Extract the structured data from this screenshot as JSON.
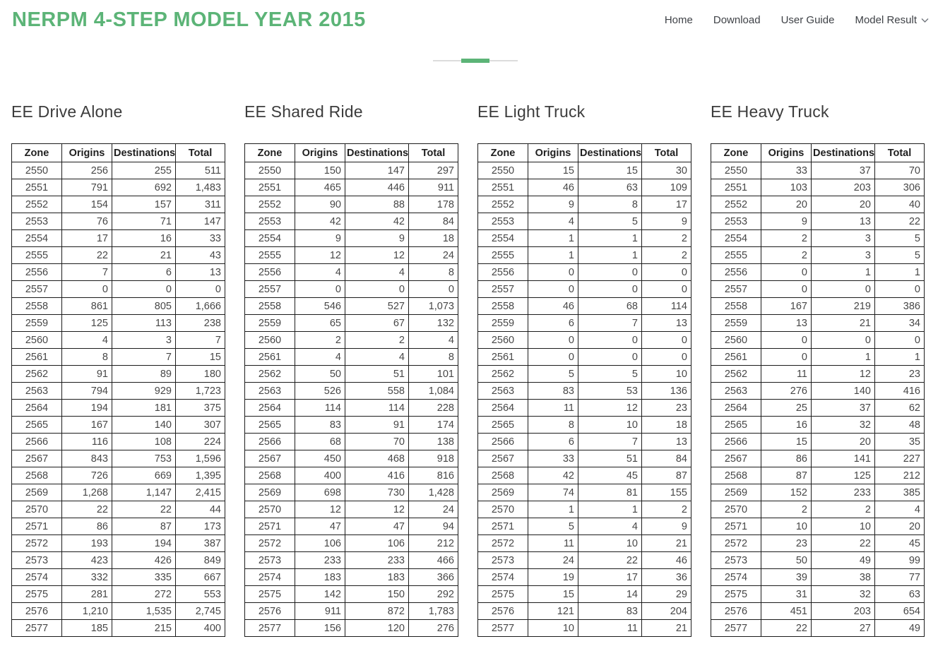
{
  "header": {
    "title": "NERPM 4-STEP MODEL YEAR 2015",
    "nav": [
      {
        "label": "Home",
        "has_dropdown": false
      },
      {
        "label": "Download",
        "has_dropdown": false
      },
      {
        "label": "User Guide",
        "has_dropdown": false
      },
      {
        "label": "Model Result",
        "has_dropdown": true
      }
    ]
  },
  "icons": {
    "dropdown": "chevron-down-icon"
  },
  "colors": {
    "accent_green": "#5cb477",
    "nav_text": "#3f4247",
    "heading_text": "#3c3c3c",
    "table_text": "#474747",
    "table_border": "#1c1c1c",
    "divider_gray": "#dcdcdc"
  },
  "columns": [
    "Zone",
    "Origins",
    "Destinations",
    "Total"
  ],
  "tables": [
    {
      "title": "EE Drive Alone",
      "rows": [
        [
          "2550",
          "256",
          "255",
          "511"
        ],
        [
          "2551",
          "791",
          "692",
          "1,483"
        ],
        [
          "2552",
          "154",
          "157",
          "311"
        ],
        [
          "2553",
          "76",
          "71",
          "147"
        ],
        [
          "2554",
          "17",
          "16",
          "33"
        ],
        [
          "2555",
          "22",
          "21",
          "43"
        ],
        [
          "2556",
          "7",
          "6",
          "13"
        ],
        [
          "2557",
          "0",
          "0",
          "0"
        ],
        [
          "2558",
          "861",
          "805",
          "1,666"
        ],
        [
          "2559",
          "125",
          "113",
          "238"
        ],
        [
          "2560",
          "4",
          "3",
          "7"
        ],
        [
          "2561",
          "8",
          "7",
          "15"
        ],
        [
          "2562",
          "91",
          "89",
          "180"
        ],
        [
          "2563",
          "794",
          "929",
          "1,723"
        ],
        [
          "2564",
          "194",
          "181",
          "375"
        ],
        [
          "2565",
          "167",
          "140",
          "307"
        ],
        [
          "2566",
          "116",
          "108",
          "224"
        ],
        [
          "2567",
          "843",
          "753",
          "1,596"
        ],
        [
          "2568",
          "726",
          "669",
          "1,395"
        ],
        [
          "2569",
          "1,268",
          "1,147",
          "2,415"
        ],
        [
          "2570",
          "22",
          "22",
          "44"
        ],
        [
          "2571",
          "86",
          "87",
          "173"
        ],
        [
          "2572",
          "193",
          "194",
          "387"
        ],
        [
          "2573",
          "423",
          "426",
          "849"
        ],
        [
          "2574",
          "332",
          "335",
          "667"
        ],
        [
          "2575",
          "281",
          "272",
          "553"
        ],
        [
          "2576",
          "1,210",
          "1,535",
          "2,745"
        ],
        [
          "2577",
          "185",
          "215",
          "400"
        ]
      ]
    },
    {
      "title": "EE Shared Ride",
      "rows": [
        [
          "2550",
          "150",
          "147",
          "297"
        ],
        [
          "2551",
          "465",
          "446",
          "911"
        ],
        [
          "2552",
          "90",
          "88",
          "178"
        ],
        [
          "2553",
          "42",
          "42",
          "84"
        ],
        [
          "2554",
          "9",
          "9",
          "18"
        ],
        [
          "2555",
          "12",
          "12",
          "24"
        ],
        [
          "2556",
          "4",
          "4",
          "8"
        ],
        [
          "2557",
          "0",
          "0",
          "0"
        ],
        [
          "2558",
          "546",
          "527",
          "1,073"
        ],
        [
          "2559",
          "65",
          "67",
          "132"
        ],
        [
          "2560",
          "2",
          "2",
          "4"
        ],
        [
          "2561",
          "4",
          "4",
          "8"
        ],
        [
          "2562",
          "50",
          "51",
          "101"
        ],
        [
          "2563",
          "526",
          "558",
          "1,084"
        ],
        [
          "2564",
          "114",
          "114",
          "228"
        ],
        [
          "2565",
          "83",
          "91",
          "174"
        ],
        [
          "2566",
          "68",
          "70",
          "138"
        ],
        [
          "2567",
          "450",
          "468",
          "918"
        ],
        [
          "2568",
          "400",
          "416",
          "816"
        ],
        [
          "2569",
          "698",
          "730",
          "1,428"
        ],
        [
          "2570",
          "12",
          "12",
          "24"
        ],
        [
          "2571",
          "47",
          "47",
          "94"
        ],
        [
          "2572",
          "106",
          "106",
          "212"
        ],
        [
          "2573",
          "233",
          "233",
          "466"
        ],
        [
          "2574",
          "183",
          "183",
          "366"
        ],
        [
          "2575",
          "142",
          "150",
          "292"
        ],
        [
          "2576",
          "911",
          "872",
          "1,783"
        ],
        [
          "2577",
          "156",
          "120",
          "276"
        ]
      ]
    },
    {
      "title": "EE Light Truck",
      "rows": [
        [
          "2550",
          "15",
          "15",
          "30"
        ],
        [
          "2551",
          "46",
          "63",
          "109"
        ],
        [
          "2552",
          "9",
          "8",
          "17"
        ],
        [
          "2553",
          "4",
          "5",
          "9"
        ],
        [
          "2554",
          "1",
          "1",
          "2"
        ],
        [
          "2555",
          "1",
          "1",
          "2"
        ],
        [
          "2556",
          "0",
          "0",
          "0"
        ],
        [
          "2557",
          "0",
          "0",
          "0"
        ],
        [
          "2558",
          "46",
          "68",
          "114"
        ],
        [
          "2559",
          "6",
          "7",
          "13"
        ],
        [
          "2560",
          "0",
          "0",
          "0"
        ],
        [
          "2561",
          "0",
          "0",
          "0"
        ],
        [
          "2562",
          "5",
          "5",
          "10"
        ],
        [
          "2563",
          "83",
          "53",
          "136"
        ],
        [
          "2564",
          "11",
          "12",
          "23"
        ],
        [
          "2565",
          "8",
          "10",
          "18"
        ],
        [
          "2566",
          "6",
          "7",
          "13"
        ],
        [
          "2567",
          "33",
          "51",
          "84"
        ],
        [
          "2568",
          "42",
          "45",
          "87"
        ],
        [
          "2569",
          "74",
          "81",
          "155"
        ],
        [
          "2570",
          "1",
          "1",
          "2"
        ],
        [
          "2571",
          "5",
          "4",
          "9"
        ],
        [
          "2572",
          "11",
          "10",
          "21"
        ],
        [
          "2573",
          "24",
          "22",
          "46"
        ],
        [
          "2574",
          "19",
          "17",
          "36"
        ],
        [
          "2575",
          "15",
          "14",
          "29"
        ],
        [
          "2576",
          "121",
          "83",
          "204"
        ],
        [
          "2577",
          "10",
          "11",
          "21"
        ]
      ]
    },
    {
      "title": "EE Heavy Truck",
      "rows": [
        [
          "2550",
          "33",
          "37",
          "70"
        ],
        [
          "2551",
          "103",
          "203",
          "306"
        ],
        [
          "2552",
          "20",
          "20",
          "40"
        ],
        [
          "2553",
          "9",
          "13",
          "22"
        ],
        [
          "2554",
          "2",
          "3",
          "5"
        ],
        [
          "2555",
          "2",
          "3",
          "5"
        ],
        [
          "2556",
          "0",
          "1",
          "1"
        ],
        [
          "2557",
          "0",
          "0",
          "0"
        ],
        [
          "2558",
          "167",
          "219",
          "386"
        ],
        [
          "2559",
          "13",
          "21",
          "34"
        ],
        [
          "2560",
          "0",
          "0",
          "0"
        ],
        [
          "2561",
          "0",
          "1",
          "1"
        ],
        [
          "2562",
          "11",
          "12",
          "23"
        ],
        [
          "2563",
          "276",
          "140",
          "416"
        ],
        [
          "2564",
          "25",
          "37",
          "62"
        ],
        [
          "2565",
          "16",
          "32",
          "48"
        ],
        [
          "2566",
          "15",
          "20",
          "35"
        ],
        [
          "2567",
          "86",
          "141",
          "227"
        ],
        [
          "2568",
          "87",
          "125",
          "212"
        ],
        [
          "2569",
          "152",
          "233",
          "385"
        ],
        [
          "2570",
          "2",
          "2",
          "4"
        ],
        [
          "2571",
          "10",
          "10",
          "20"
        ],
        [
          "2572",
          "23",
          "22",
          "45"
        ],
        [
          "2573",
          "50",
          "49",
          "99"
        ],
        [
          "2574",
          "39",
          "38",
          "77"
        ],
        [
          "2575",
          "31",
          "32",
          "63"
        ],
        [
          "2576",
          "451",
          "203",
          "654"
        ],
        [
          "2577",
          "22",
          "27",
          "49"
        ]
      ]
    }
  ]
}
